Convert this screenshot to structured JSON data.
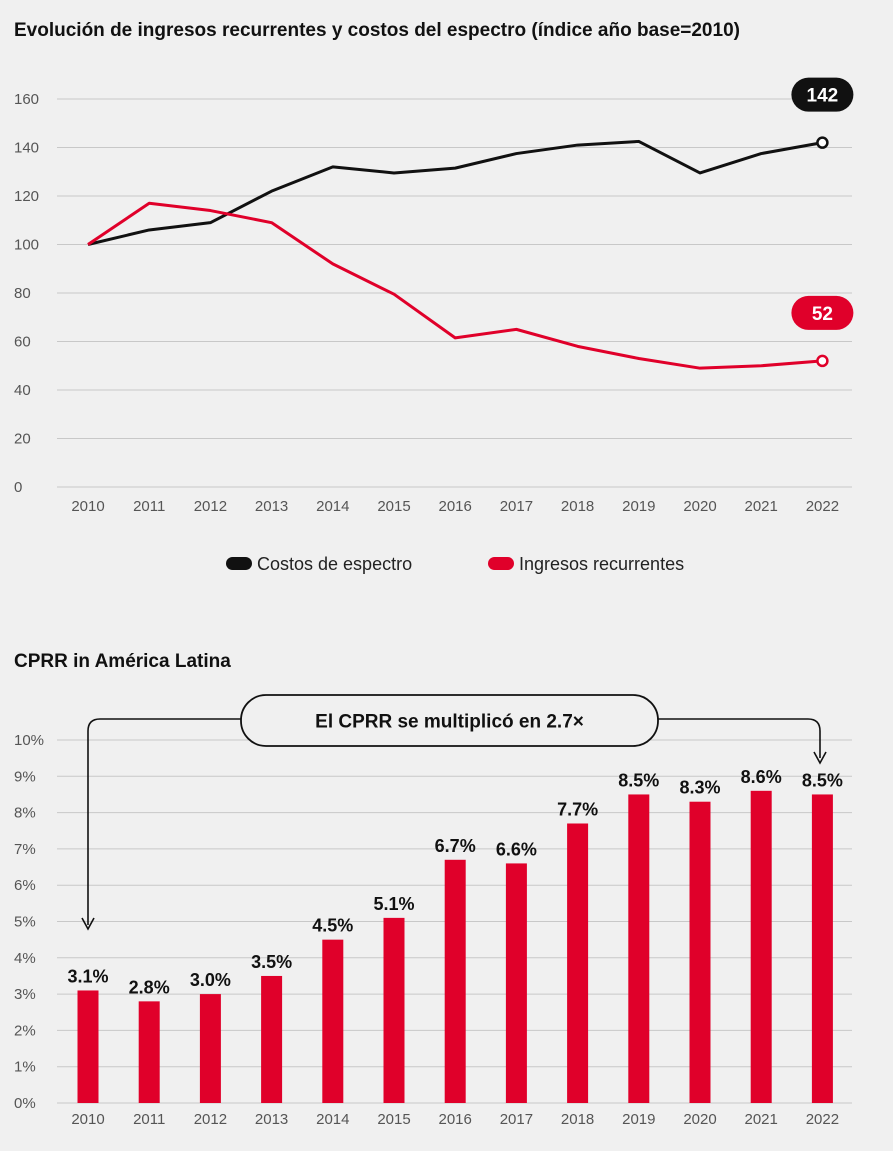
{
  "chart_data": [
    {
      "type": "line",
      "title": "Evolución de ingresos recurrentes y costos del espectro (índice año base=2010)",
      "x": [
        "2010",
        "2011",
        "2012",
        "2013",
        "2014",
        "2015",
        "2016",
        "2017",
        "2018",
        "2019",
        "2020",
        "2021",
        "2022"
      ],
      "ylim": [
        0,
        160
      ],
      "yticks": [
        "0",
        "20",
        "40",
        "60",
        "80",
        "100",
        "120",
        "140",
        "160"
      ],
      "grid": true,
      "legend_position": "bottom",
      "series": [
        {
          "name": "Costos de espectro",
          "color": "#111111",
          "values": [
            100,
            106,
            109,
            122,
            132,
            129.5,
            131.5,
            137.5,
            141,
            142.5,
            129.5,
            137.5,
            142
          ],
          "end_label": "142"
        },
        {
          "name": "Ingresos recurrentes",
          "color": "#e0002a",
          "values": [
            100,
            117,
            114,
            109,
            92,
            79.5,
            61.5,
            65,
            58,
            53,
            49,
            50,
            52
          ],
          "end_label": "52"
        }
      ]
    },
    {
      "type": "bar",
      "title": "CPRR in América Latina",
      "categories": [
        "2010",
        "2011",
        "2012",
        "2013",
        "2014",
        "2015",
        "2016",
        "2017",
        "2018",
        "2019",
        "2020",
        "2021",
        "2022"
      ],
      "values": [
        3.1,
        2.8,
        3.0,
        3.5,
        4.5,
        5.1,
        6.7,
        6.6,
        7.7,
        8.5,
        8.3,
        8.6,
        8.5
      ],
      "labels": [
        "3.1%",
        "2.8%",
        "3.0%",
        "3.5%",
        "4.5%",
        "5.1%",
        "6.7%",
        "6.6%",
        "7.7%",
        "8.5%",
        "8.3%",
        "8.6%",
        "8.5%"
      ],
      "ylim": [
        0,
        10
      ],
      "yticks": [
        "0%",
        "1%",
        "2%",
        "3%",
        "4%",
        "5%",
        "6%",
        "7%",
        "8%",
        "9%",
        "10%"
      ],
      "grid": true,
      "bar_color": "#e0002a",
      "annotation": "El CPRR se multiplicó en 2.7×"
    }
  ]
}
